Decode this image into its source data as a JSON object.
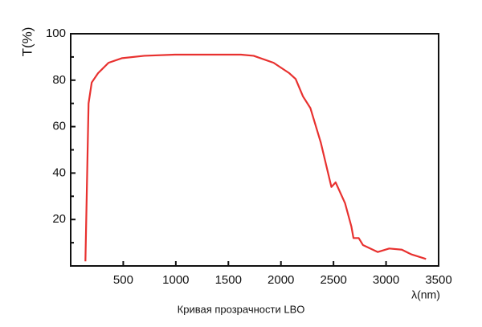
{
  "chart_data": {
    "type": "line",
    "ylabel": "T(%)",
    "xlabel": "λ(nm)",
    "caption": "Кривая прозрачности LBO",
    "xlim": [
      0,
      3500
    ],
    "xticks": [
      500,
      1000,
      1500,
      2000,
      2500,
      3000,
      3500
    ],
    "ylim": [
      0,
      100
    ],
    "yticks": [
      20,
      40,
      60,
      80,
      100
    ],
    "yminorticks": [
      10,
      30,
      50,
      70,
      90
    ],
    "grid": false,
    "series": [
      {
        "color": "#e8312f",
        "x": [
          140,
          170,
          200,
          260,
          360,
          490,
          700,
          990,
          1620,
          1740,
          1930,
          2080,
          2140,
          2210,
          2280,
          2380,
          2480,
          2520,
          2610,
          2670,
          2690,
          2740,
          2780,
          2920,
          3030,
          3150,
          3240,
          3380
        ],
        "values": [
          2,
          70,
          79,
          83,
          87.5,
          89.5,
          90.5,
          91,
          91,
          90.5,
          87.5,
          83,
          80.5,
          73,
          68,
          53,
          34,
          36,
          27,
          17,
          12,
          12,
          9,
          6,
          7.5,
          7,
          5,
          3
        ]
      }
    ]
  }
}
